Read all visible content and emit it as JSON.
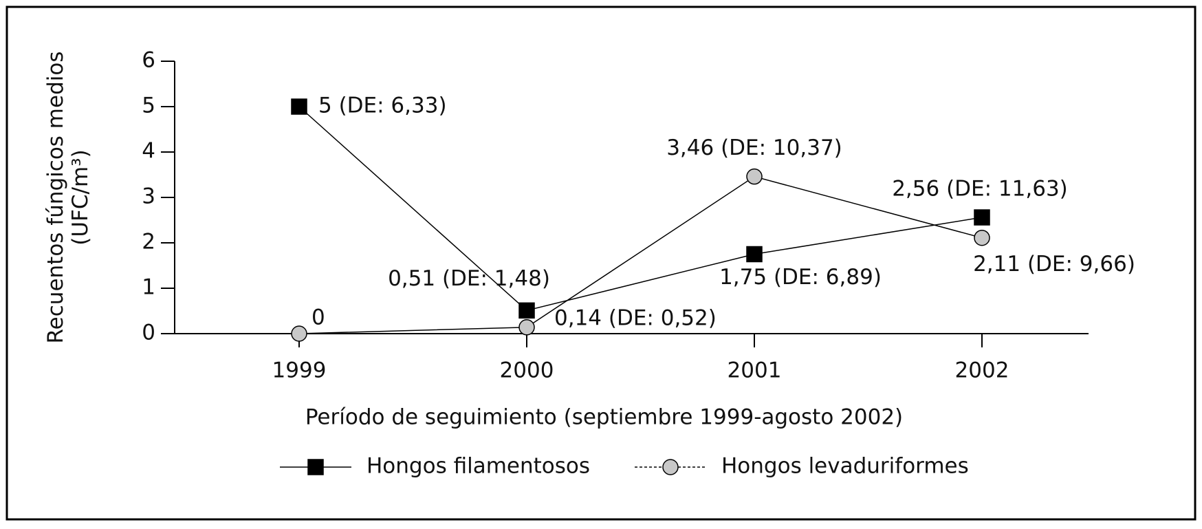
{
  "chart_data": {
    "type": "line",
    "ylabel": [
      "Recuentos fúngicos medios",
      "(UFC/m³)"
    ],
    "xlabel": "Período de seguimiento (septiembre 1999-agosto 2002)",
    "categories": [
      "1999",
      "2000",
      "2001",
      "2002"
    ],
    "series": [
      {
        "name": "Hongos filamentosos",
        "color": "#000000",
        "marker": "square",
        "dash": false,
        "values": [
          5,
          0.51,
          1.75,
          2.56
        ],
        "value_labels": [
          "5 (DE: 6,33)",
          "0,51 (DE: 1,48)",
          "1,75 (DE: 6,89)",
          "2,56 (DE: 11,63)"
        ]
      },
      {
        "name": "Hongos levaduriformes",
        "color": "#c8c8c8",
        "marker": "circle",
        "dash": true,
        "values": [
          0,
          0.14,
          3.46,
          2.11
        ],
        "value_labels": [
          "0",
          "0,14 (DE: 0,52)",
          "3,46 (DE: 10,37)",
          "2,11 (DE: 9,66)"
        ]
      }
    ],
    "ylim": [
      0,
      6
    ],
    "yticks": [
      0,
      1,
      2,
      3,
      4,
      5,
      6
    ],
    "legend": "bottom"
  }
}
